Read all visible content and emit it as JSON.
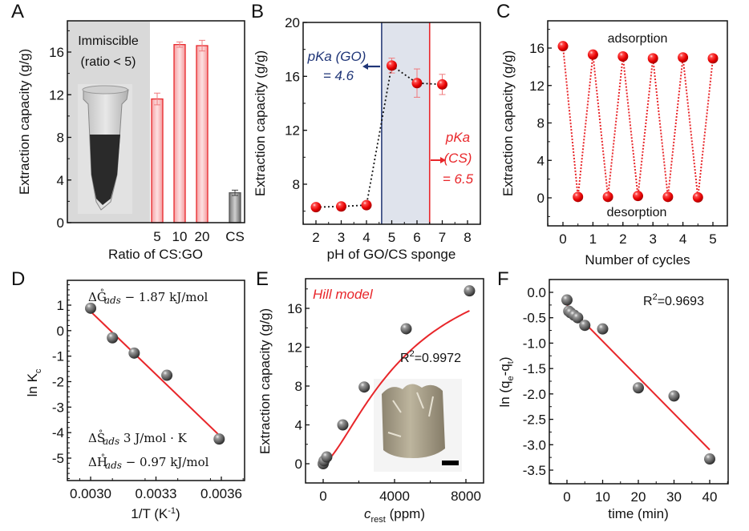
{
  "chart_data": [
    {
      "id": "A",
      "panel_label": "A",
      "type": "bar",
      "title": "",
      "xlabel": "Ratio of CS:GO",
      "ylabel": "Extraction capacity (g/g)",
      "ylim": [
        0,
        18.5
      ],
      "yticks": [
        0,
        4,
        8,
        12,
        16
      ],
      "categories": [
        "5",
        "10",
        "20",
        "CS"
      ],
      "values": [
        11.6,
        16.7,
        16.6,
        2.8
      ],
      "errors": [
        0.55,
        0.25,
        0.5,
        0.25
      ],
      "colors": [
        "#e8262a",
        "#e8262a",
        "#e8262a",
        "#555555"
      ],
      "fills": [
        "#f8b5b7",
        "#f8b5b7",
        "#f8b5b7",
        "#9a9a9a"
      ],
      "shaded_region_label": [
        "Immiscible",
        "(ratio < 5)"
      ],
      "inset": "photo of vial with GO/CS mixture"
    },
    {
      "id": "B",
      "panel_label": "B",
      "type": "scatter",
      "xlabel": "pH of GO/CS sponge",
      "ylabel": "Extraction capacity (g/g)",
      "xlim": [
        1.6,
        8.4
      ],
      "ylim": [
        5.2,
        20
      ],
      "xticks": [
        2,
        3,
        4,
        5,
        6,
        7,
        8
      ],
      "yticks": [
        8,
        12,
        16,
        20
      ],
      "x": [
        2,
        3,
        4,
        5,
        6,
        7
      ],
      "y": [
        6.3,
        6.35,
        6.45,
        16.8,
        15.5,
        15.4
      ],
      "errors": [
        0,
        0,
        0,
        0.55,
        1.05,
        0.75
      ],
      "shaded_x_range": [
        4.6,
        6.5
      ],
      "vlines": [
        {
          "x": 4.6,
          "color": "#2b3f7a"
        },
        {
          "x": 6.5,
          "color": "#e8262a"
        }
      ],
      "annotations": [
        {
          "lines": [
            "pKa (GO)",
            "= 4.6"
          ],
          "color": "#1f3577",
          "arrow": "left"
        },
        {
          "lines": [
            "pKa",
            "(CS)",
            "= 6.5"
          ],
          "color": "#e8262a",
          "arrow": "right"
        }
      ]
    },
    {
      "id": "C",
      "panel_label": "C",
      "type": "line",
      "xlabel": "Number of cycles",
      "ylabel": "Extraction capacity (g/g)",
      "xlim": [
        -0.45,
        5.55
      ],
      "ylim": [
        -2.8,
        18.5
      ],
      "xticks": [
        0,
        1,
        2,
        3,
        4,
        5
      ],
      "yticks": [
        0,
        4,
        8,
        12,
        16
      ],
      "x": [
        0,
        0.5,
        1,
        1.5,
        2,
        2.5,
        3,
        3.5,
        4,
        4.5,
        5
      ],
      "y": [
        16.2,
        0.1,
        15.3,
        0.1,
        15.1,
        0.2,
        14.9,
        0.1,
        15.0,
        0.05,
        14.9
      ],
      "annotations": [
        "adsorption",
        "desorption"
      ]
    },
    {
      "id": "D",
      "panel_label": "D",
      "type": "scatter",
      "xlabel": "1/T (K-1)",
      "ylabel": "ln Kc",
      "xlim": [
        0.00292,
        0.0037
      ],
      "ylim": [
        -5.9,
        1.95
      ],
      "xticks": [
        "0.0030",
        "0.0033",
        "0.0036"
      ],
      "xtick_values": [
        0.003,
        0.0033,
        0.0036
      ],
      "yticks": [
        -5,
        -4,
        -3,
        -2,
        -1,
        0,
        1
      ],
      "x": [
        0.003,
        0.0031,
        0.0032,
        0.00335,
        0.00359
      ],
      "y": [
        0.88,
        -0.28,
        -0.88,
        -1.75,
        -4.25
      ],
      "fit": {
        "x": [
          0.003,
          0.00359
        ],
        "y": [
          0.75,
          -4.1
        ]
      },
      "annotations": [
        {
          "symbol": "ΔG",
          "sup": "°",
          "sub": "ads",
          "text": " − 1.87 kJ/mol"
        },
        {
          "symbol": "ΔS",
          "sup": "°",
          "sub": "ads",
          "text": " 3 J/mol · K"
        },
        {
          "symbol": "ΔH",
          "sup": "°",
          "sub": "ads",
          "text": " − 0.97 kJ/mol"
        }
      ]
    },
    {
      "id": "E",
      "panel_label": "E",
      "type": "scatter",
      "xlabel": "c_rest (ppm)",
      "xlabel_main": "c",
      "xlabel_sub": "rest",
      "xlabel_unit": " (ppm)",
      "ylabel": "Extraction capacity (g/g)",
      "xlim": [
        -1000,
        8700
      ],
      "ylim": [
        -2,
        19
      ],
      "xticks": [
        0,
        4000,
        8000
      ],
      "yticks": [
        0,
        4,
        8,
        12,
        16
      ],
      "x": [
        0,
        50,
        200,
        1100,
        2300,
        4650,
        8200
      ],
      "y": [
        0,
        0.3,
        0.7,
        4.0,
        7.9,
        13.9,
        17.8
      ],
      "fit_label": "Hill model",
      "r2": "R²=0.9972",
      "fit_curve": {
        "ymax": 23,
        "k": 4800,
        "n": 1.45
      },
      "inset": "photo of GO/CS sponge with scale bar"
    },
    {
      "id": "F",
      "panel_label": "F",
      "type": "scatter",
      "xlabel": "time (min)",
      "ylabel": "ln (qe-qt)",
      "xlim": [
        -5,
        45
      ],
      "ylim": [
        -3.75,
        0.3
      ],
      "xticks": [
        0,
        10,
        20,
        30,
        40
      ],
      "yticks": [
        "0.0",
        "-0.5",
        "-1.0",
        "-1.5",
        "-2.0",
        "-2.5",
        "-3.0",
        "-3.5"
      ],
      "ytick_values": [
        0,
        -0.5,
        -1.0,
        -1.5,
        -2.0,
        -2.5,
        -3.0,
        -3.5
      ],
      "x": [
        0,
        0.5,
        1,
        2,
        3,
        5,
        10,
        20,
        30,
        40
      ],
      "y": [
        -0.15,
        -0.37,
        -0.4,
        -0.45,
        -0.5,
        -0.65,
        -0.72,
        -1.88,
        -2.04,
        -3.28
      ],
      "fit": {
        "x": [
          0,
          40
        ],
        "y": [
          -0.25,
          -3.1
        ]
      },
      "r2": "R²=0.9693"
    }
  ],
  "labels": {
    "A": {
      "letter": "A",
      "xlabel": "Ratio of CS:GO",
      "ylabel": "Extraction capacity (g/g)",
      "shade1": "Immiscible",
      "shade2": "(ratio < 5)"
    },
    "B": {
      "letter": "B",
      "xlabel": "pH of GO/CS sponge",
      "ylabel": "Extraction capacity (g/g)",
      "go1": "pKa (GO)",
      "go2": "= 4.6",
      "cs1": "pKa",
      "cs2": "(CS)",
      "cs3": "= 6.5"
    },
    "C": {
      "letter": "C",
      "xlabel": "Number of cycles",
      "ylabel": "Extraction capacity (g/g)",
      "ads": "adsorption",
      "des": "desorption"
    },
    "D": {
      "letter": "D",
      "xlabel": "1/T (K",
      "xlabel_sup": "-1",
      "xlabel_end": ")",
      "ylabel": "ln K",
      "ylabel_sub": "c"
    },
    "E": {
      "letter": "E",
      "xlabel": "c",
      "xlabel_sub": "rest",
      "xlabel_end": " (ppm)",
      "ylabel": "Extraction capacity (g/g)",
      "hill": "Hill model",
      "r2": "R",
      "r2_sup": "2",
      "r2_val": "=0.9972"
    },
    "F": {
      "letter": "F",
      "xlabel": "time (min)",
      "ylabel": "ln (q",
      "ylabel_sub1": "e",
      "ylabel_mid": "-q",
      "ylabel_sub2": "t",
      "ylabel_end": ")",
      "r2": "R",
      "r2_sup": "2",
      "r2_val": "=0.9693"
    }
  }
}
